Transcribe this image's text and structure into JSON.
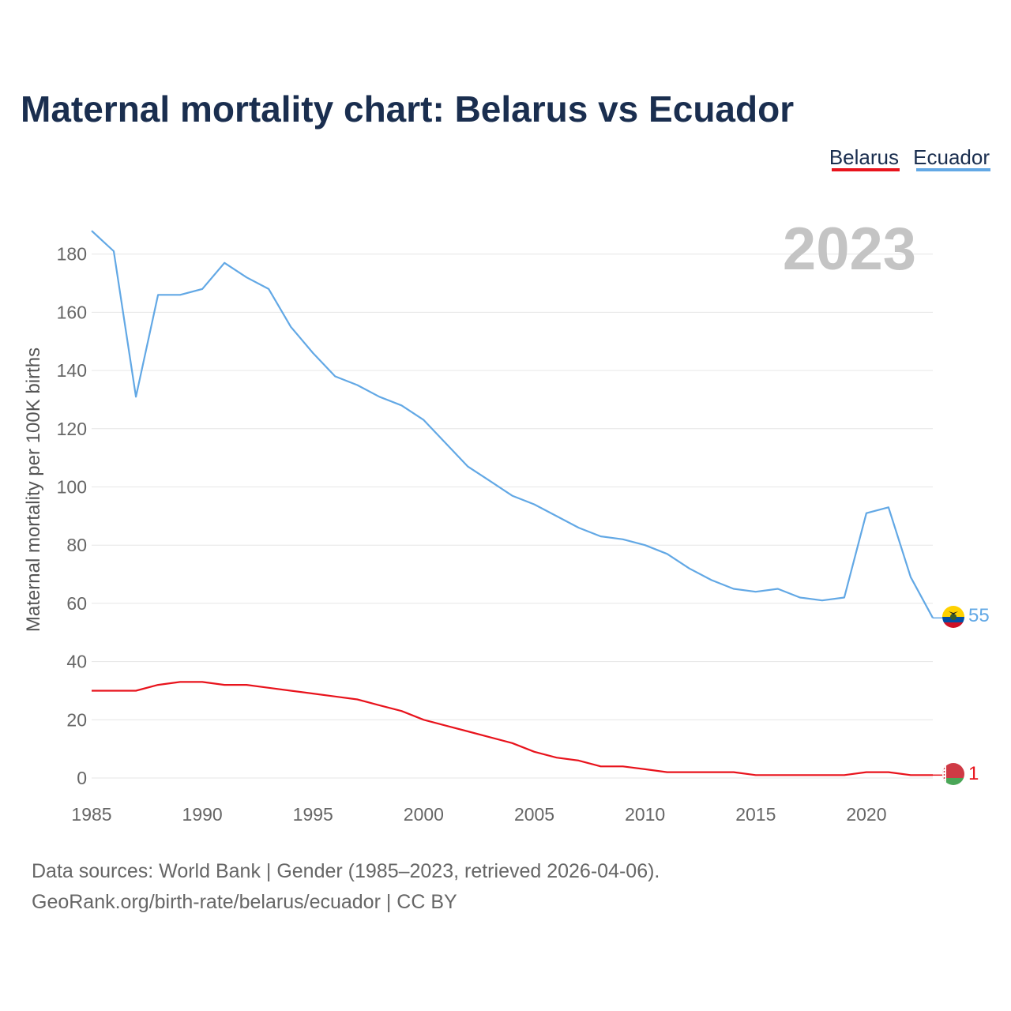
{
  "chart_data": {
    "type": "line",
    "title": "Maternal mortality chart: Belarus vs Ecuador",
    "ylabel": "Maternal mortality per 100K births",
    "xlabel": "",
    "year_label": "2023",
    "xlim": [
      1985,
      2023
    ],
    "ylim": [
      0,
      190
    ],
    "x_ticks": [
      1985,
      1990,
      1995,
      2000,
      2005,
      2010,
      2015,
      2020
    ],
    "y_ticks": [
      0,
      20,
      40,
      60,
      80,
      100,
      120,
      140,
      160,
      180
    ],
    "x": [
      1985,
      1986,
      1987,
      1988,
      1989,
      1990,
      1991,
      1992,
      1993,
      1994,
      1995,
      1996,
      1997,
      1998,
      1999,
      2000,
      2001,
      2002,
      2003,
      2004,
      2005,
      2006,
      2007,
      2008,
      2009,
      2010,
      2011,
      2012,
      2013,
      2014,
      2015,
      2016,
      2017,
      2018,
      2019,
      2020,
      2021,
      2022,
      2023
    ],
    "series": [
      {
        "name": "Belarus",
        "color": "#e8131c",
        "end_label": "1",
        "values": [
          30,
          30,
          30,
          32,
          33,
          33,
          32,
          32,
          31,
          30,
          29,
          28,
          27,
          25,
          23,
          20,
          18,
          16,
          14,
          12,
          9,
          7,
          6,
          4,
          4,
          3,
          2,
          2,
          2,
          2,
          1,
          1,
          1,
          1,
          1,
          2,
          2,
          1,
          1
        ]
      },
      {
        "name": "Ecuador",
        "color": "#62a8e5",
        "end_label": "55",
        "values": [
          188,
          181,
          131,
          166,
          166,
          168,
          177,
          172,
          168,
          155,
          146,
          138,
          135,
          131,
          128,
          123,
          115,
          107,
          102,
          97,
          94,
          90,
          86,
          83,
          82,
          80,
          77,
          72,
          68,
          65,
          64,
          65,
          62,
          61,
          62,
          91,
          93,
          69,
          55
        ]
      }
    ],
    "legend": [
      "Belarus",
      "Ecuador"
    ],
    "legend_position": "top-right"
  },
  "footer": {
    "line1": "Data sources: World Bank | Gender (1985–2023, retrieved 2026-04-06).",
    "line2": "GeoRank.org/birth-rate/belarus/ecuador | CC BY"
  }
}
